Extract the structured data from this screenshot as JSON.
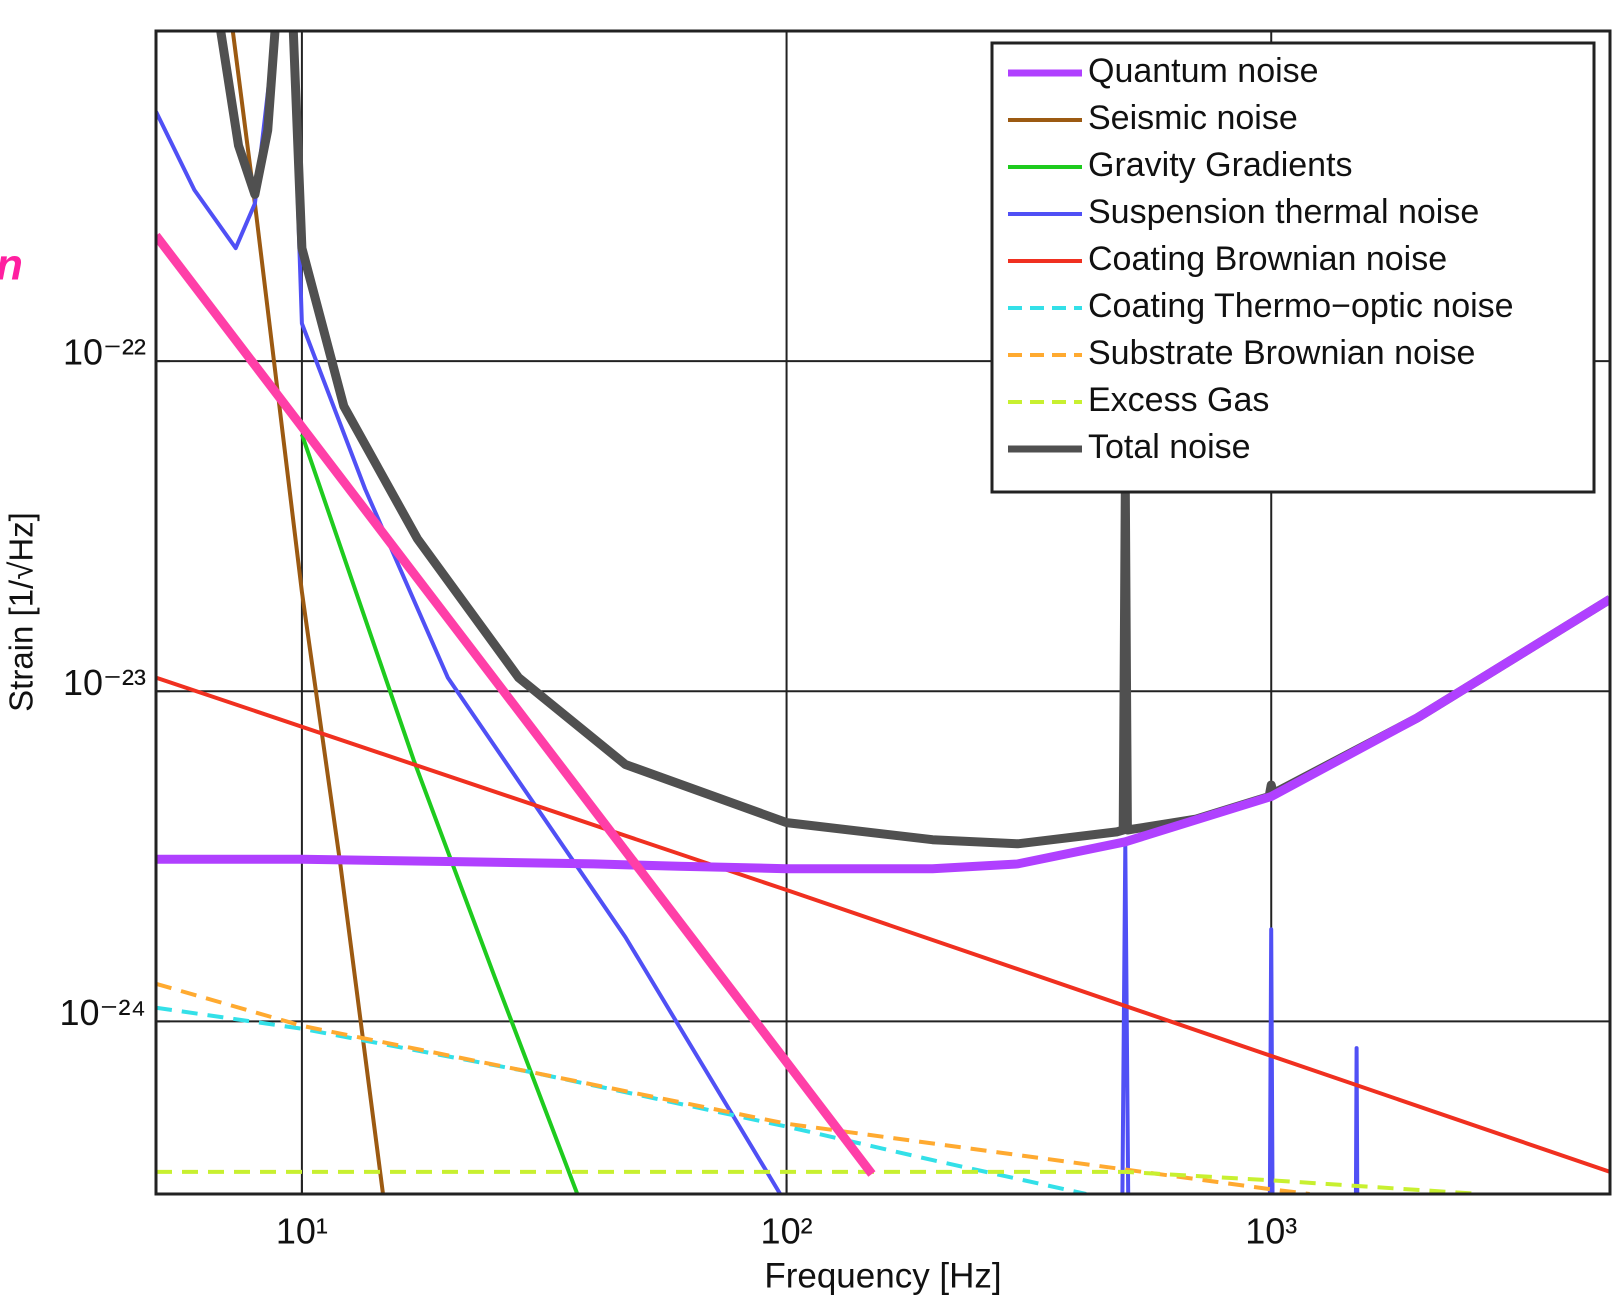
{
  "chart_data": {
    "type": "line",
    "xlabel": "Frequency [Hz]",
    "ylabel": "Strain [1/√Hz]",
    "annotation": "n",
    "annotation_color": "#ff1fa0",
    "xlog": true,
    "ylog": true,
    "grid": true,
    "legend": "upper right",
    "xlim": [
      5,
      5000
    ],
    "ylim": [
      3e-25,
      1e-21
    ],
    "xticks": [
      {
        "value": 10,
        "label": "10¹"
      },
      {
        "value": 100,
        "label": "10²"
      },
      {
        "value": 1000,
        "label": "10³"
      }
    ],
    "yticks": [
      {
        "value": 1e-24,
        "label": "10⁻²⁴"
      },
      {
        "value": 1e-23,
        "label": "10⁻²³"
      },
      {
        "value": 1e-22,
        "label": "10⁻²²"
      }
    ],
    "series": [
      {
        "name": "Seismic noise",
        "color": "#9c5a12",
        "width": 4,
        "dashed": false,
        "x": [
          7.2,
          8,
          10,
          12,
          14.7
        ],
        "values": [
          1e-21,
          3e-22,
          2e-23,
          3e-24,
          3e-25
        ]
      },
      {
        "name": "Gravity Gradients",
        "color": "#1ecb1e",
        "width": 4,
        "dashed": false,
        "x": [
          10,
          17,
          25,
          37
        ],
        "values": [
          6e-23,
          6.2e-24,
          1.36e-24,
          3e-25
        ]
      },
      {
        "name": "Suspension thermal noise",
        "color": "#5050f5",
        "width": 4,
        "dashed": false,
        "x": [
          5,
          6,
          7.3,
          8,
          8.8,
          9.3,
          9.7,
          10,
          13.5,
          20,
          46.5,
          97,
          490,
          500,
          510,
          990,
          1000,
          1010,
          1490,
          1500,
          1510
        ],
        "values": [
          5.7e-22,
          3.3e-22,
          2.2e-22,
          3e-22,
          1e-21,
          3e-21,
          5e-22,
          1.3e-22,
          4.1e-23,
          1.1e-23,
          1.8e-24,
          3e-25,
          1e-25,
          3.4e-24,
          1e-25,
          1e-25,
          1.9e-24,
          1e-25,
          1e-25,
          8.3e-25,
          1e-25
        ]
      },
      {
        "name": "Coating Brownian noise",
        "color": "#f03020",
        "width": 4,
        "dashed": false,
        "x": [
          5,
          100,
          5000
        ],
        "values": [
          1.1e-23,
          2.5e-24,
          3.5e-25
        ]
      },
      {
        "name": "Coating Thermo−optic noise",
        "color": "#33e0e8",
        "width": 4,
        "dashed": true,
        "x": [
          5,
          10,
          30,
          100,
          200,
          415
        ],
        "values": [
          1.1e-24,
          9.5e-25,
          7e-25,
          4.8e-25,
          3.8e-25,
          3e-25
        ]
      },
      {
        "name": "Substrate Brownian noise",
        "color": "#ffaa30",
        "width": 4,
        "dashed": true,
        "x": [
          5,
          10,
          100,
          1000,
          1200
        ],
        "values": [
          1.3e-24,
          9.7e-25,
          4.9e-25,
          3.1e-25,
          3e-25
        ]
      },
      {
        "name": "Excess Gas",
        "color": "#c8f030",
        "width": 4,
        "dashed": true,
        "x": [
          5,
          500,
          1000,
          2700
        ],
        "values": [
          3.5e-25,
          3.5e-25,
          3.3e-25,
          3e-25
        ]
      },
      {
        "name": "Total noise",
        "color": "#505050",
        "width": 9,
        "dashed": false,
        "x": [
          6.8,
          7.4,
          8,
          8.5,
          8.8,
          9.2,
          9.6,
          10,
          12.2,
          17.3,
          28,
          46.5,
          100,
          200,
          300,
          480,
          495,
          500,
          505,
          700,
          990,
          1000,
          1010,
          2000,
          5000
        ],
        "values": [
          1e-21,
          4.5e-22,
          3.2e-22,
          5e-22,
          1e-21,
          5e-21,
          1e-21,
          2.2e-22,
          7.3e-23,
          2.9e-23,
          1.1e-23,
          6e-24,
          4e-24,
          3.55e-24,
          3.45e-24,
          3.75e-24,
          3.8e-24,
          4.1e-23,
          3.8e-24,
          4.1e-24,
          4.8e-24,
          5.2e-24,
          4.9e-24,
          8.3e-24,
          1.9e-23
        ]
      },
      {
        "name": "Quantum noise",
        "color": "#b040ff",
        "width": 9,
        "dashed": false,
        "x": [
          5,
          10,
          20,
          40,
          60,
          100,
          200,
          300,
          500,
          1000,
          2000,
          5000
        ],
        "values": [
          3.1e-24,
          3.1e-24,
          3.05e-24,
          3e-24,
          2.95e-24,
          2.9e-24,
          2.9e-24,
          3e-24,
          3.5e-24,
          4.8e-24,
          8.3e-24,
          1.9e-23
        ]
      },
      {
        "color": "#ff3fa8",
        "width": 9,
        "dashed": false,
        "x": [
          5,
          150
        ],
        "values": [
          2.4e-22,
          3.45e-25
        ]
      }
    ],
    "legend_order": [
      8,
      0,
      1,
      2,
      3,
      4,
      5,
      6,
      7
    ]
  }
}
